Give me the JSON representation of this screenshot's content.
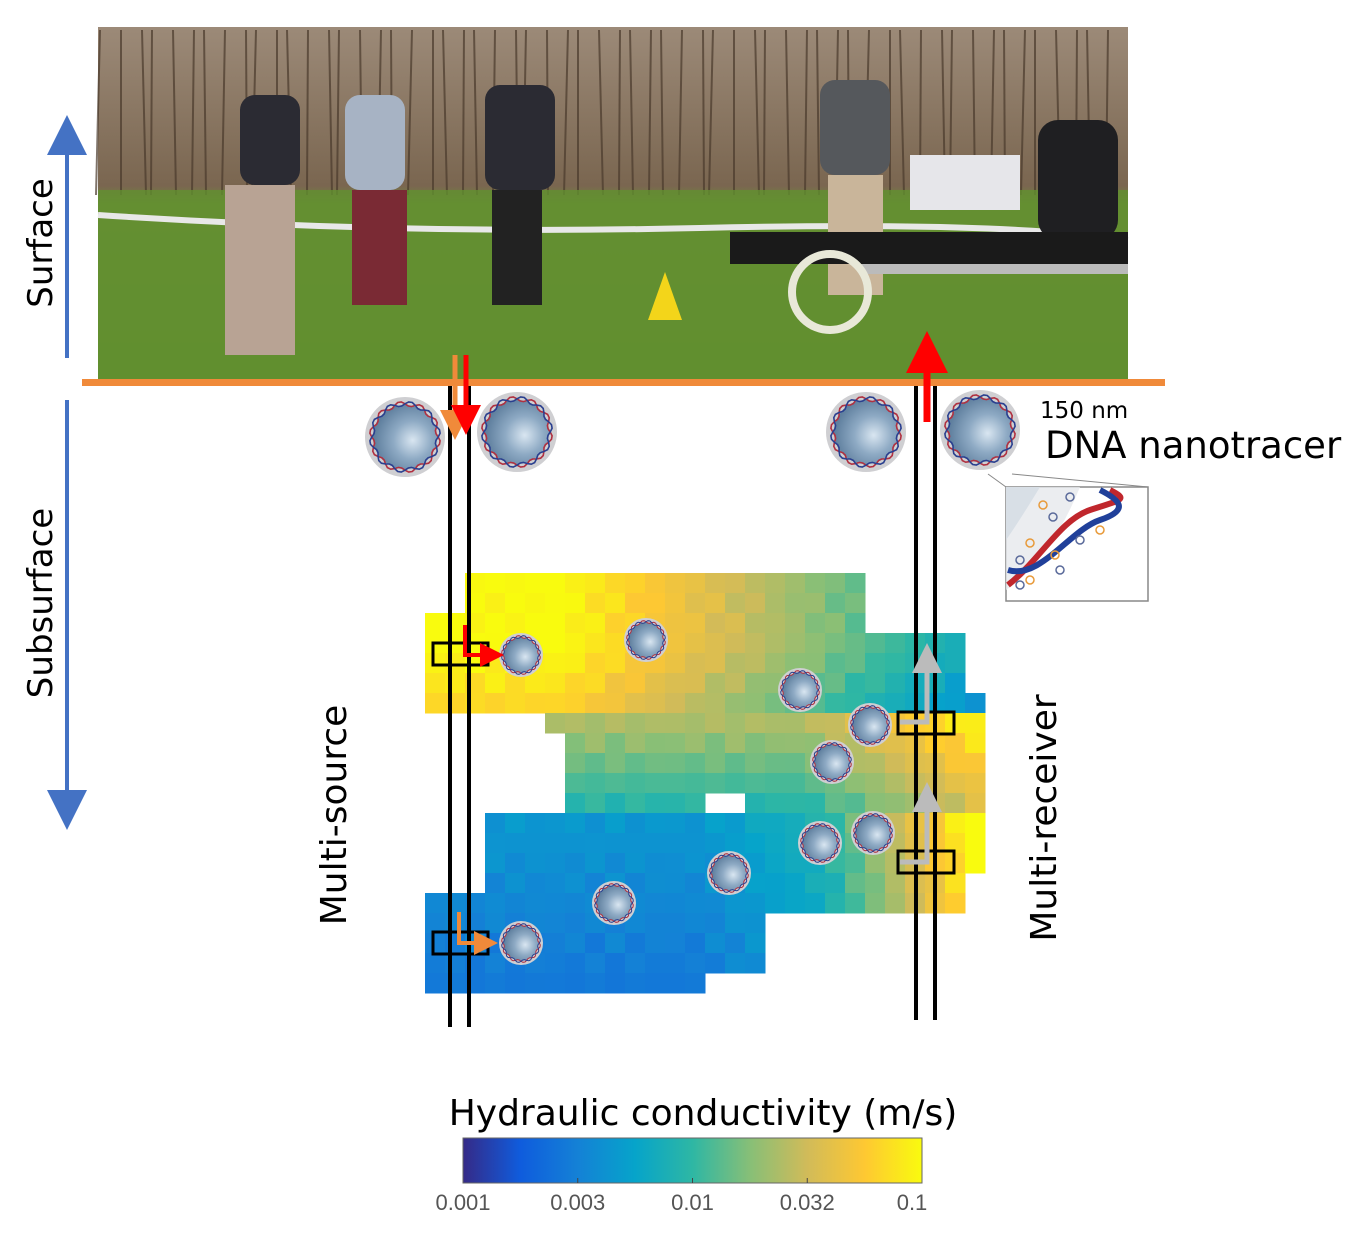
{
  "labels": {
    "surface": "Surface",
    "subsurface": "Subsurface",
    "multi_source": "Multi-source",
    "multi_receiver": "Multi-receiver",
    "particle_size": "150 nm",
    "particle_name": "DNA nanotracer"
  },
  "colorbar": {
    "title": "Hydraulic conductivity (m/s)",
    "ticks": [
      "0.001",
      "0.003",
      "0.01",
      "0.032",
      "0.1"
    ],
    "scale": "log",
    "range": [
      0.001,
      0.1
    ],
    "colormap": [
      "#352a87",
      "#0f5cdd",
      "#1481d6",
      "#06a4ca",
      "#2eb7a4",
      "#87bf77",
      "#d1bb59",
      "#fec832",
      "#f9fb0e"
    ]
  },
  "colors": {
    "ground_line": "#f08a3a",
    "axis_arrow": "#4472c4",
    "injection_arrow_red": "#ff0000",
    "injection_arrow_orange": "#f08a3a",
    "receiver_arrow": "#bbbbbb",
    "particle": "#8eaac4"
  },
  "icons": {
    "photo": "field-site-photo",
    "particle": "dna-nanoparticle-icon",
    "inset": "dna-strand-closeup"
  }
}
